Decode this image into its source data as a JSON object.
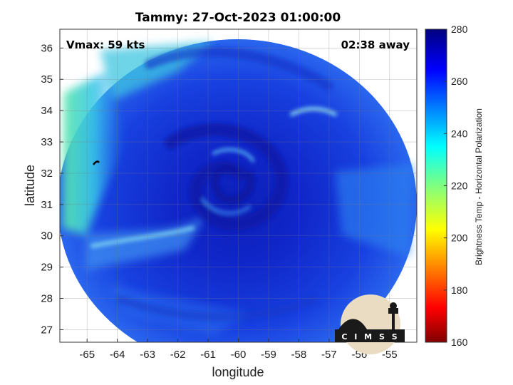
{
  "title": "Tammy: 27-Oct-2023 01:00:00",
  "vmax_label": "Vmax: 59 kts",
  "time_away_label": "02:38 away",
  "logo_text": "C I M S S",
  "chart_data": {
    "type": "heatmap",
    "title": "Tammy: 27-Oct-2023 01:00:00",
    "xlabel": "longitude",
    "ylabel": "latitude",
    "xlim": [
      -65.9,
      -54.1
    ],
    "ylim": [
      26.6,
      36.6
    ],
    "x_ticks": [
      -65,
      -64,
      -63,
      -62,
      -61,
      -60,
      -59,
      -58,
      -57,
      -56,
      -55
    ],
    "y_ticks": [
      27,
      28,
      29,
      30,
      31,
      32,
      33,
      34,
      35,
      36
    ],
    "grid": true,
    "storm_center": {
      "lon": -60.3,
      "lat": 31.9
    },
    "colorbar": {
      "label": "Brightness Temp - Horizontal Polarization",
      "min": 160,
      "max": 280,
      "ticks": [
        160,
        180,
        200,
        220,
        240,
        260,
        280
      ],
      "colormap": "jet",
      "colors": [
        "#800000",
        "#ff0000",
        "#ff8000",
        "#ffff00",
        "#80ff80",
        "#00ffff",
        "#0080ff",
        "#0000ff",
        "#000080"
      ]
    },
    "annotations": [
      "Vmax: 59 kts",
      "02:38 away"
    ]
  }
}
